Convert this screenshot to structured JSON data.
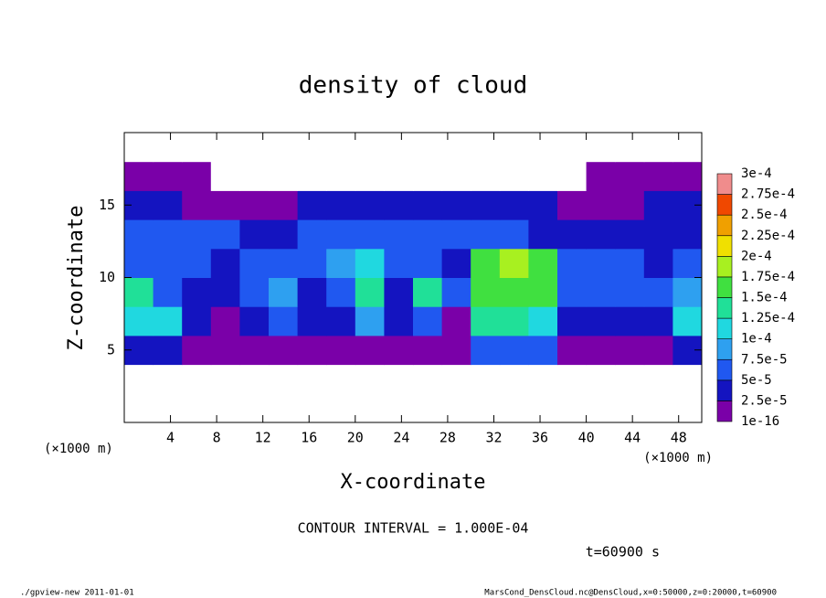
{
  "chart_data": {
    "type": "heatmap",
    "title": "density of cloud",
    "x_label": "X-coordinate",
    "y_label": "Z-coordinate",
    "x_unit_left": "(×1000 m)",
    "x_unit_right": "(×1000 m)",
    "contour_note": "CONTOUR INTERVAL = 1.000E-04",
    "time_note": "t=60900 s",
    "footer_left": "./gpview-new   2011-01-01",
    "footer_right": "MarsCond_DensCloud.nc@DensCloud,x=0:50000,z=0:20000,t=60900",
    "xlim": [
      0,
      50
    ],
    "ylim": [
      0,
      20
    ],
    "xticks": [
      4,
      8,
      12,
      16,
      20,
      24,
      28,
      32,
      36,
      40,
      44,
      48
    ],
    "yticks": [
      5,
      10,
      15
    ],
    "x": [
      1.25,
      3.75,
      6.25,
      8.75,
      11.25,
      13.75,
      16.25,
      18.75,
      21.25,
      23.75,
      26.25,
      28.75,
      31.25,
      33.75,
      36.25,
      38.75,
      41.25,
      43.75,
      46.25,
      48.75
    ],
    "y": [
      1,
      3,
      5,
      7,
      9,
      11,
      13,
      15,
      17,
      19
    ],
    "values": [
      [
        0,
        0,
        0,
        0,
        0,
        0,
        0,
        0,
        0,
        0,
        0,
        0,
        0,
        0,
        0,
        0,
        0,
        0,
        0,
        0
      ],
      [
        0,
        0,
        0,
        0,
        0,
        0,
        0,
        0,
        0,
        0,
        0,
        0,
        0,
        0,
        0,
        0,
        0,
        0,
        0,
        0
      ],
      [
        3e-05,
        3e-05,
        1e-05,
        1e-05,
        1e-05,
        1e-05,
        1e-05,
        1e-05,
        1e-05,
        2e-05,
        2e-05,
        1e-05,
        5e-05,
        6e-05,
        5e-05,
        1e-05,
        1e-05,
        1e-05,
        1e-05,
        3e-05
      ],
      [
        0.00012,
        0.00011,
        3e-05,
        2e-05,
        4e-05,
        6e-05,
        3e-05,
        4e-05,
        8e-05,
        3e-05,
        7e-05,
        2e-05,
        0.00013,
        0.00014,
        0.00012,
        3e-05,
        3e-05,
        4e-05,
        3e-05,
        0.0001
      ],
      [
        0.00013,
        5e-05,
        4e-05,
        3e-05,
        5e-05,
        8e-05,
        4e-05,
        6e-05,
        0.00013,
        4e-05,
        0.00013,
        5e-05,
        0.00016,
        0.00017,
        0.00016,
        5e-05,
        5e-05,
        7e-05,
        6e-05,
        8e-05
      ],
      [
        6e-05,
        7e-05,
        5e-05,
        4e-05,
        6e-05,
        5e-05,
        5e-05,
        8e-05,
        0.00011,
        7e-05,
        6e-05,
        4e-05,
        0.00015,
        0.00018,
        0.00016,
        6e-05,
        5e-05,
        6e-05,
        4e-05,
        5e-05
      ],
      [
        5e-05,
        6e-05,
        5e-05,
        5e-05,
        4e-05,
        3e-05,
        5e-05,
        6e-05,
        5e-05,
        6e-05,
        7e-05,
        6e-05,
        5e-05,
        6e-05,
        4e-05,
        3e-05,
        4e-05,
        3e-05,
        4e-05,
        3e-05
      ],
      [
        3e-05,
        3e-05,
        2e-05,
        1e-05,
        1e-05,
        2e-05,
        3e-05,
        3e-05,
        3e-05,
        4e-05,
        4e-05,
        3e-05,
        3e-05,
        3e-05,
        3e-05,
        1e-05,
        1e-05,
        2e-05,
        3e-05,
        3e-05
      ],
      [
        1e-05,
        1e-05,
        1e-05,
        0,
        0,
        0,
        0,
        0,
        0,
        0,
        0,
        0,
        0,
        0,
        0,
        0,
        1e-05,
        1e-05,
        1e-05,
        1e-05
      ],
      [
        0,
        0,
        0,
        0,
        0,
        0,
        0,
        0,
        0,
        0,
        0,
        0,
        0,
        0,
        0,
        0,
        0,
        0,
        0,
        0
      ]
    ],
    "colorbar_ticks": [
      {
        "value": 1e-16,
        "label": "1e-16"
      },
      {
        "value": 2.5e-05,
        "label": "2.5e-5"
      },
      {
        "value": 5e-05,
        "label": "5e-5"
      },
      {
        "value": 7.5e-05,
        "label": "7.5e-5"
      },
      {
        "value": 0.0001,
        "label": "1e-4"
      },
      {
        "value": 0.000125,
        "label": "1.25e-4"
      },
      {
        "value": 0.00015,
        "label": "1.5e-4"
      },
      {
        "value": 0.000175,
        "label": "1.75e-4"
      },
      {
        "value": 0.0002,
        "label": "2e-4"
      },
      {
        "value": 0.000225,
        "label": "2.25e-4"
      },
      {
        "value": 0.00025,
        "label": "2.5e-4"
      },
      {
        "value": 0.000275,
        "label": "2.75e-4"
      },
      {
        "value": 0.0003,
        "label": "3e-4"
      }
    ],
    "colors": [
      "#7a00a8",
      "#1414c0",
      "#2058f0",
      "#2ea0f0",
      "#20d8e0",
      "#20e098",
      "#40e040",
      "#a8f020",
      "#f0e000",
      "#f0a000",
      "#f04800",
      "#f08c8c"
    ]
  }
}
